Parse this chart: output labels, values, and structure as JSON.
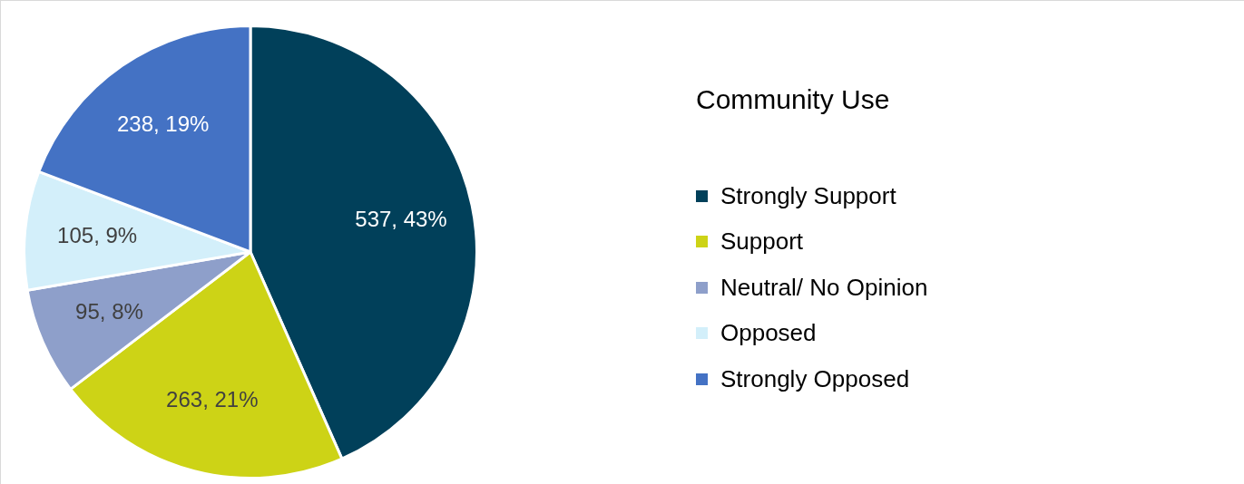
{
  "chart_data": {
    "type": "pie",
    "legend_title": "Community Use",
    "legend": "right",
    "categories": [
      "Strongly Support",
      "Support",
      "Neutral/ No Opinion",
      "Opposed",
      "Strongly Opposed"
    ],
    "values": [
      537,
      263,
      95,
      105,
      238
    ],
    "colors": [
      "#01405a",
      "#cdd316",
      "#8e9fca",
      "#d3effa",
      "#4472c4"
    ],
    "value_labels": [
      "537, 43%",
      "263, 21%",
      "95, 8%",
      "105, 9%",
      "238, 19%"
    ]
  }
}
